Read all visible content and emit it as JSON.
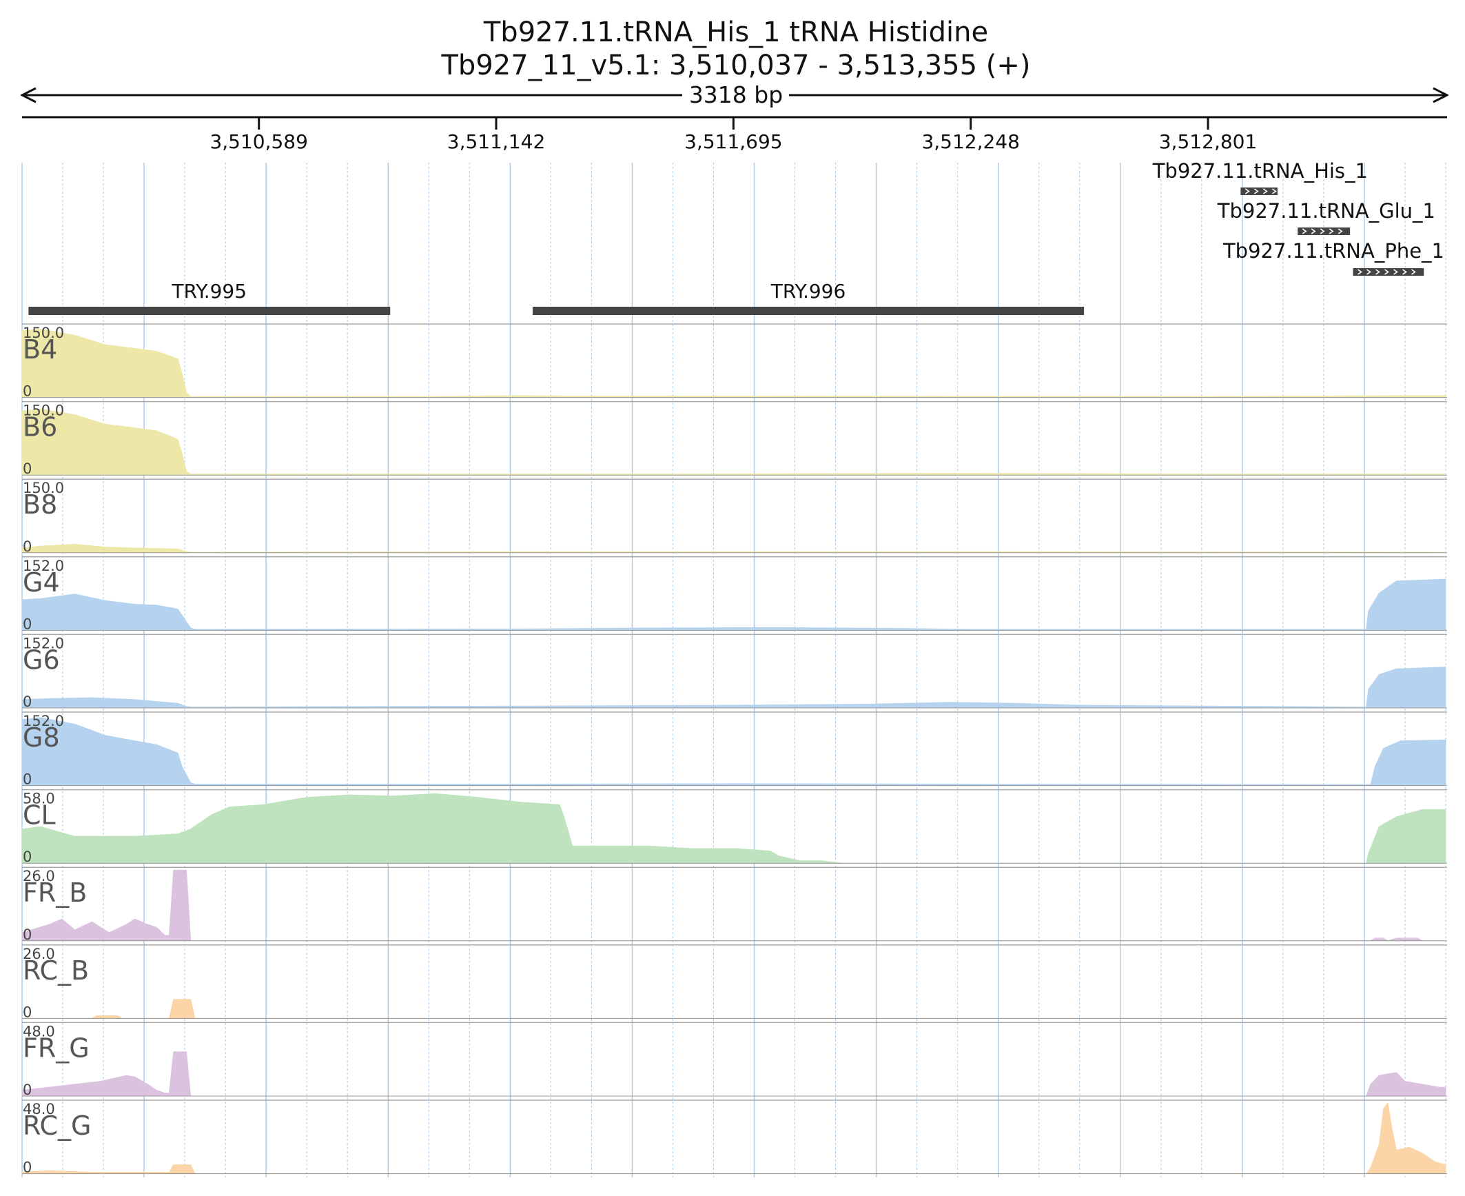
{
  "header": {
    "title_line1": "Tb927.11.tRNA_His_1  tRNA Histidine",
    "title_line2": "Tb927_11_v5.1: 3,510,037 - 3,513,355 (+)",
    "span_label": "3318 bp"
  },
  "region": {
    "start": 3510037,
    "end": 3513355
  },
  "ticks": [
    {
      "pos": 3510589,
      "label": "3,510,589"
    },
    {
      "pos": 3511142,
      "label": "3,511,142"
    },
    {
      "pos": 3511695,
      "label": "3,511,695"
    },
    {
      "pos": 3512248,
      "label": "3,512,248"
    },
    {
      "pos": 3512801,
      "label": "3,512,801"
    }
  ],
  "genes": [
    {
      "name": "Tb927.11.tRNA_His_1",
      "start": 3512877,
      "end": 3512963,
      "strand": "+"
    },
    {
      "name": "Tb927.11.tRNA_Glu_1",
      "start": 3513010,
      "end": 3513132,
      "strand": "+"
    },
    {
      "name": "Tb927.11.tRNA_Phe_1",
      "start": 3513139,
      "end": 3513304,
      "strand": "+"
    }
  ],
  "features": [
    {
      "name": "TRY.995",
      "start": 3510052,
      "end": 3510895
    },
    {
      "name": "TRY.996",
      "start": 3511227,
      "end": 3512512
    }
  ],
  "colors": {
    "yellow": "#ede7a8",
    "blue": "#b5d3ee",
    "green": "#bfe3bf",
    "purple": "#dbc3e0",
    "orange": "#fbd5a8",
    "feature": "#444444",
    "gene": "#444444",
    "gridline": "#a9c9e6",
    "separator": "#aaaaaa"
  },
  "chart_data": {
    "type": "area",
    "x_unit": "bp",
    "x_range": [
      3510037,
      3513355
    ],
    "grid": true,
    "series": [
      {
        "name": "B4",
        "max_label": "150.0",
        "zero_label": "0",
        "ymax": 150,
        "color": "yellow",
        "points": [
          [
            3510037,
            142
          ],
          [
            3510080,
            145
          ],
          [
            3510160,
            132
          ],
          [
            3510230,
            112
          ],
          [
            3510300,
            104
          ],
          [
            3510350,
            98
          ],
          [
            3510400,
            82
          ],
          [
            3510410,
            50
          ],
          [
            3510420,
            10
          ],
          [
            3510430,
            2
          ],
          [
            3511000,
            2
          ],
          [
            3511200,
            4
          ],
          [
            3511300,
            3
          ],
          [
            3511700,
            3
          ],
          [
            3512800,
            2
          ],
          [
            3513300,
            4
          ],
          [
            3513355,
            4
          ]
        ]
      },
      {
        "name": "B6",
        "max_label": "150.0",
        "zero_label": "0",
        "ymax": 150,
        "color": "yellow",
        "points": [
          [
            3510037,
            136
          ],
          [
            3510080,
            140
          ],
          [
            3510160,
            128
          ],
          [
            3510230,
            108
          ],
          [
            3510300,
            100
          ],
          [
            3510350,
            94
          ],
          [
            3510400,
            76
          ],
          [
            3510410,
            45
          ],
          [
            3510420,
            8
          ],
          [
            3510430,
            2
          ],
          [
            3511500,
            2
          ],
          [
            3512200,
            4
          ],
          [
            3512500,
            3
          ],
          [
            3512800,
            2
          ],
          [
            3513355,
            2
          ]
        ]
      },
      {
        "name": "B8",
        "max_label": "150.0",
        "zero_label": "0",
        "ymax": 150,
        "color": "yellow",
        "points": [
          [
            3510037,
            10
          ],
          [
            3510080,
            14
          ],
          [
            3510160,
            18
          ],
          [
            3510230,
            12
          ],
          [
            3510300,
            10
          ],
          [
            3510400,
            8
          ],
          [
            3510420,
            2
          ],
          [
            3510430,
            1
          ],
          [
            3511200,
            2
          ],
          [
            3511700,
            2
          ],
          [
            3512300,
            2
          ],
          [
            3513355,
            1
          ]
        ]
      },
      {
        "name": "G4",
        "max_label": "152.0",
        "zero_label": "0",
        "ymax": 152,
        "color": "blue",
        "points": [
          [
            3510037,
            66
          ],
          [
            3510080,
            68
          ],
          [
            3510160,
            78
          ],
          [
            3510230,
            64
          ],
          [
            3510300,
            56
          ],
          [
            3510350,
            54
          ],
          [
            3510400,
            46
          ],
          [
            3510410,
            32
          ],
          [
            3510430,
            5
          ],
          [
            3510440,
            2
          ],
          [
            3511200,
            3
          ],
          [
            3511500,
            5
          ],
          [
            3511800,
            6
          ],
          [
            3512100,
            4
          ],
          [
            3512250,
            2
          ],
          [
            3513170,
            2
          ],
          [
            3513175,
            42
          ],
          [
            3513200,
            80
          ],
          [
            3513240,
            106
          ],
          [
            3513355,
            110
          ]
        ]
      },
      {
        "name": "G6",
        "max_label": "152.0",
        "zero_label": "0",
        "ymax": 152,
        "color": "blue",
        "points": [
          [
            3510037,
            18
          ],
          [
            3510100,
            20
          ],
          [
            3510200,
            22
          ],
          [
            3510300,
            18
          ],
          [
            3510400,
            10
          ],
          [
            3510420,
            3
          ],
          [
            3510440,
            2
          ],
          [
            3511200,
            4
          ],
          [
            3511700,
            6
          ],
          [
            3512000,
            8
          ],
          [
            3512200,
            12
          ],
          [
            3512350,
            10
          ],
          [
            3512500,
            6
          ],
          [
            3512800,
            4
          ],
          [
            3513150,
            2
          ],
          [
            3513170,
            2
          ],
          [
            3513175,
            40
          ],
          [
            3513200,
            72
          ],
          [
            3513240,
            84
          ],
          [
            3513355,
            88
          ]
        ]
      },
      {
        "name": "G8",
        "max_label": "152.0",
        "zero_label": "0",
        "ymax": 152,
        "color": "blue",
        "points": [
          [
            3510037,
            142
          ],
          [
            3510080,
            146
          ],
          [
            3510160,
            132
          ],
          [
            3510230,
            108
          ],
          [
            3510300,
            96
          ],
          [
            3510350,
            88
          ],
          [
            3510400,
            70
          ],
          [
            3510410,
            40
          ],
          [
            3510430,
            6
          ],
          [
            3510440,
            3
          ],
          [
            3511200,
            3
          ],
          [
            3511700,
            4
          ],
          [
            3512300,
            3
          ],
          [
            3513180,
            2
          ],
          [
            3513190,
            40
          ],
          [
            3513210,
            80
          ],
          [
            3513250,
            96
          ],
          [
            3513355,
            98
          ]
        ]
      },
      {
        "name": "CL",
        "max_label": "58.0",
        "zero_label": "0",
        "ymax": 58,
        "color": "green",
        "points": [
          [
            3510037,
            28
          ],
          [
            3510080,
            30
          ],
          [
            3510160,
            22
          ],
          [
            3510300,
            22
          ],
          [
            3510400,
            24
          ],
          [
            3510430,
            28
          ],
          [
            3510480,
            40
          ],
          [
            3510520,
            46
          ],
          [
            3510600,
            48
          ],
          [
            3510700,
            54
          ],
          [
            3510800,
            56
          ],
          [
            3510900,
            55
          ],
          [
            3511000,
            57
          ],
          [
            3511100,
            54
          ],
          [
            3511200,
            50
          ],
          [
            3511290,
            48
          ],
          [
            3511300,
            38
          ],
          [
            3511320,
            14
          ],
          [
            3511400,
            14
          ],
          [
            3511500,
            14
          ],
          [
            3511600,
            12
          ],
          [
            3511700,
            12
          ],
          [
            3511780,
            10
          ],
          [
            3511800,
            6
          ],
          [
            3511850,
            2
          ],
          [
            3511900,
            2
          ],
          [
            3511950,
            0
          ],
          [
            3513170,
            0
          ],
          [
            3513175,
            8
          ],
          [
            3513200,
            30
          ],
          [
            3513240,
            38
          ],
          [
            3513300,
            44
          ],
          [
            3513355,
            44
          ]
        ]
      },
      {
        "name": "FR_B",
        "max_label": "26.0",
        "zero_label": "0",
        "ymax": 26,
        "color": "purple",
        "points": [
          [
            3510037,
            3
          ],
          [
            3510100,
            6
          ],
          [
            3510130,
            8
          ],
          [
            3510160,
            4
          ],
          [
            3510200,
            7
          ],
          [
            3510240,
            3
          ],
          [
            3510280,
            6
          ],
          [
            3510300,
            8
          ],
          [
            3510330,
            6
          ],
          [
            3510350,
            5
          ],
          [
            3510370,
            2
          ],
          [
            3510380,
            2
          ],
          [
            3510390,
            26
          ],
          [
            3510420,
            26
          ],
          [
            3510430,
            0
          ],
          [
            3513180,
            0
          ],
          [
            3513190,
            1
          ],
          [
            3513210,
            1
          ],
          [
            3513220,
            0
          ],
          [
            3513240,
            1
          ],
          [
            3513290,
            1
          ],
          [
            3513300,
            0
          ],
          [
            3513355,
            0
          ]
        ]
      },
      {
        "name": "RC_B",
        "max_label": "26.0",
        "zero_label": "0",
        "ymax": 26,
        "color": "orange",
        "points": [
          [
            3510037,
            0
          ],
          [
            3510200,
            0
          ],
          [
            3510210,
            1
          ],
          [
            3510260,
            1
          ],
          [
            3510270,
            0
          ],
          [
            3510380,
            0
          ],
          [
            3510390,
            7
          ],
          [
            3510430,
            7
          ],
          [
            3510440,
            0
          ],
          [
            3513355,
            0
          ]
        ]
      },
      {
        "name": "FR_G",
        "max_label": "48.0",
        "zero_label": "0",
        "ymax": 48,
        "color": "purple",
        "points": [
          [
            3510037,
            4
          ],
          [
            3510100,
            6
          ],
          [
            3510160,
            8
          ],
          [
            3510220,
            10
          ],
          [
            3510280,
            14
          ],
          [
            3510300,
            13
          ],
          [
            3510330,
            8
          ],
          [
            3510350,
            4
          ],
          [
            3510370,
            2
          ],
          [
            3510380,
            2
          ],
          [
            3510390,
            30
          ],
          [
            3510420,
            30
          ],
          [
            3510430,
            0
          ],
          [
            3513170,
            0
          ],
          [
            3513180,
            8
          ],
          [
            3513200,
            14
          ],
          [
            3513240,
            16
          ],
          [
            3513260,
            10
          ],
          [
            3513300,
            8
          ],
          [
            3513340,
            6
          ],
          [
            3513355,
            6
          ]
        ]
      },
      {
        "name": "RC_G",
        "max_label": "48.0",
        "zero_label": "0",
        "ymax": 48,
        "color": "orange",
        "points": [
          [
            3510037,
            1
          ],
          [
            3510100,
            2
          ],
          [
            3510200,
            1
          ],
          [
            3510300,
            1
          ],
          [
            3510380,
            1
          ],
          [
            3510390,
            6
          ],
          [
            3510430,
            6
          ],
          [
            3510440,
            0
          ],
          [
            3513170,
            0
          ],
          [
            3513180,
            4
          ],
          [
            3513200,
            20
          ],
          [
            3513210,
            44
          ],
          [
            3513220,
            48
          ],
          [
            3513230,
            30
          ],
          [
            3513240,
            16
          ],
          [
            3513270,
            18
          ],
          [
            3513300,
            14
          ],
          [
            3513330,
            8
          ],
          [
            3513355,
            6
          ]
        ]
      }
    ]
  }
}
